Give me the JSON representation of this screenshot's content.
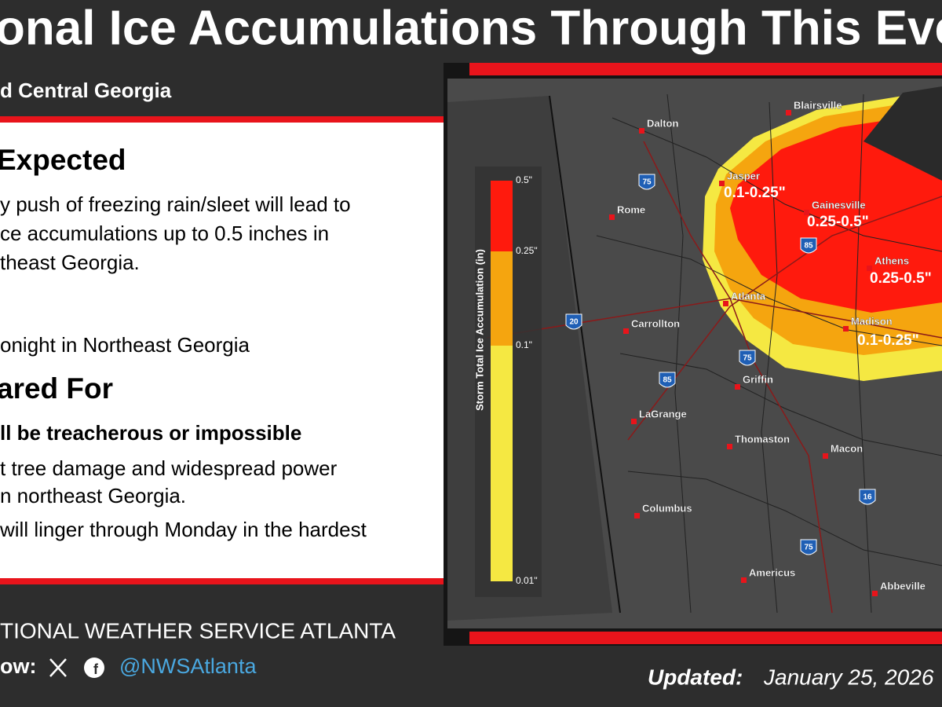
{
  "header": {
    "title": "onal Ice Accumulations Through This Eve",
    "subtitle": "d Central Georgia"
  },
  "panel": {
    "expected_heading": "Expected",
    "expected_lines": [
      "y push of freezing rain/sleet will lead to",
      "ce accumulations up to 0.5 inches in",
      "theast Georgia."
    ],
    "timing_line": "onight in Northeast Georgia",
    "prepared_heading": "ared For",
    "impacts_bold": "ll be treacherous or impossible",
    "impacts_lines": [
      "t tree damage and widespread power",
      "n northeast Georgia.",
      "will linger through Monday in the hardest"
    ]
  },
  "footer": {
    "office": "TIONAL WEATHER SERVICE ATLANTA",
    "follow": "ow:",
    "handle": "@NWSAtlanta",
    "updated_label": "Updated:",
    "updated_date": "January 25, 2026"
  },
  "map": {
    "legend": {
      "title": "Storm Total Ice Accumulation (in)",
      "labels": [
        "0.5\"",
        "0.25\"",
        "0.1\"",
        "0.01\""
      ]
    },
    "cities": [
      "Blairsville",
      "Dalton",
      "Rome",
      "Jasper",
      "Gainesville",
      "Athens",
      "Atlanta",
      "Carrollton",
      "Madison",
      "Griffin",
      "LaGrange",
      "Thomaston",
      "Macon",
      "Columbus",
      "Americus",
      "Abbeville"
    ],
    "amounts": [
      "0.1-0.25\"",
      "0.25-0.5\"",
      "0.25-0.5\"",
      "0.1-0.25\""
    ],
    "interstates": [
      "75",
      "85",
      "20",
      "75",
      "85",
      "16",
      "75"
    ]
  }
}
